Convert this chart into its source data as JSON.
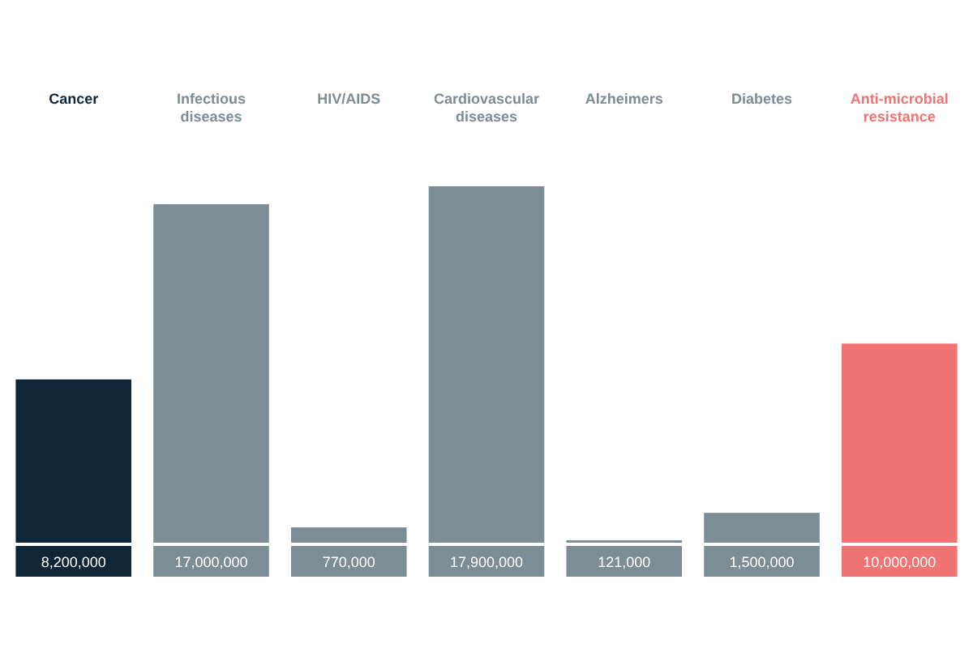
{
  "chart_data": {
    "type": "bar",
    "categories": [
      "Cancer",
      "Infectious diseases",
      "HIV/AIDS",
      "Cardiovascular diseases",
      "Alzheimers",
      "Diabetes",
      "Anti-microbial resistance"
    ],
    "values": [
      8200000,
      17000000,
      770000,
      17900000,
      121000,
      1500000,
      10000000
    ],
    "colors": [
      "#0f2638",
      "#7d8d95",
      "#7d8d95",
      "#7d8d95",
      "#7d8d95",
      "#7d8d95",
      "#f07474"
    ],
    "value_labels": [
      "8,200,000",
      "17,000,000",
      "770,000",
      "17,900,000",
      "121,000",
      "1,500,000",
      "10,000,000"
    ]
  }
}
